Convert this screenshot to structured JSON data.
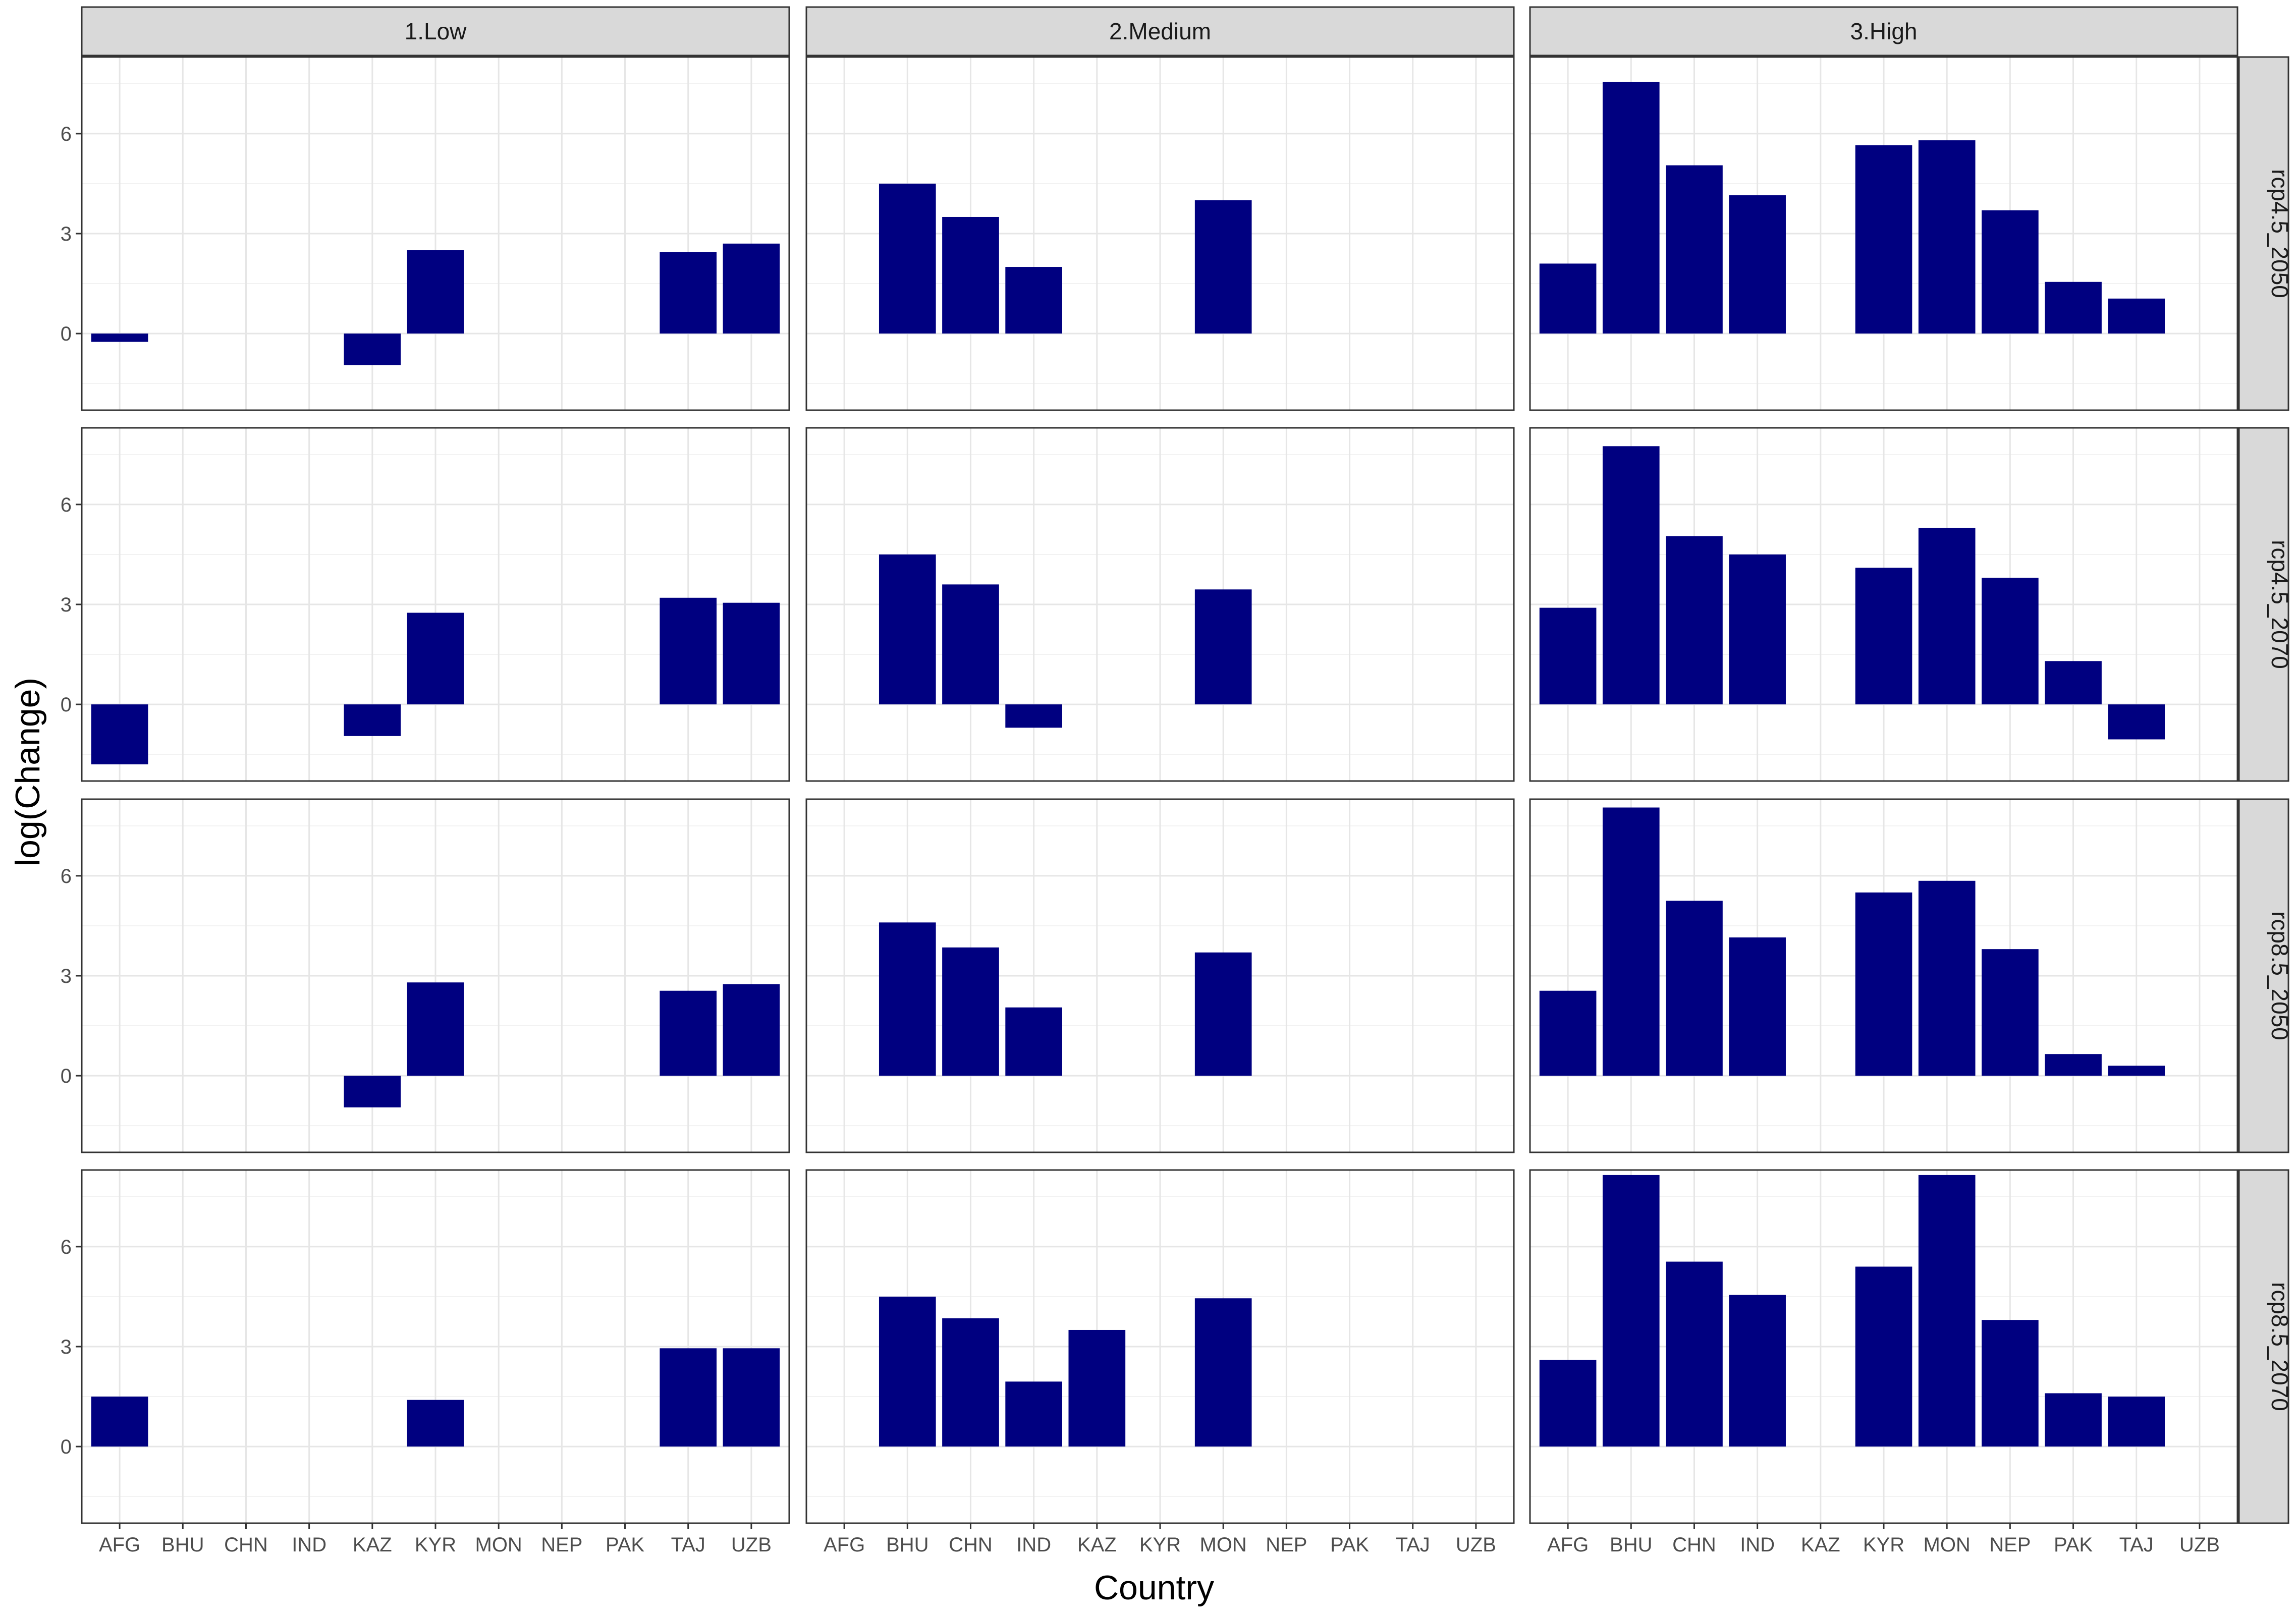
{
  "chart_data": {
    "type": "bar",
    "xlabel": "Country",
    "ylabel": "log(Change)",
    "categories": [
      "AFG",
      "BHU",
      "CHN",
      "IND",
      "KAZ",
      "KYR",
      "MON",
      "NEP",
      "PAK",
      "TAJ",
      "UZB"
    ],
    "columns": [
      "1.Low",
      "2.Medium",
      "3.High"
    ],
    "rows": [
      "rcp4.5_2050",
      "rcp4.5_2070",
      "rcp8.5_2050",
      "rcp8.5_2070"
    ],
    "yticks": [
      0,
      3,
      6
    ],
    "ylim": [
      -2.3,
      8.3
    ],
    "grid": true,
    "bar_color": "#000080",
    "panels": [
      {
        "row": "rcp4.5_2050",
        "column": "1.Low",
        "values": [
          -0.25,
          null,
          null,
          null,
          -0.95,
          2.5,
          null,
          null,
          null,
          2.45,
          2.7
        ]
      },
      {
        "row": "rcp4.5_2050",
        "column": "2.Medium",
        "values": [
          null,
          4.5,
          3.5,
          2.0,
          null,
          null,
          4.0,
          null,
          null,
          null,
          null
        ]
      },
      {
        "row": "rcp4.5_2050",
        "column": "3.High",
        "values": [
          2.1,
          7.55,
          5.05,
          4.15,
          null,
          5.65,
          5.8,
          3.7,
          1.55,
          1.05,
          null
        ]
      },
      {
        "row": "rcp4.5_2070",
        "column": "1.Low",
        "values": [
          -1.8,
          null,
          null,
          null,
          -0.95,
          2.75,
          null,
          null,
          null,
          3.2,
          3.05
        ]
      },
      {
        "row": "rcp4.5_2070",
        "column": "2.Medium",
        "values": [
          null,
          4.5,
          3.6,
          -0.7,
          null,
          null,
          3.45,
          null,
          null,
          null,
          null
        ]
      },
      {
        "row": "rcp4.5_2070",
        "column": "3.High",
        "values": [
          2.9,
          7.75,
          5.05,
          4.5,
          null,
          4.1,
          5.3,
          3.8,
          1.3,
          -1.05,
          null
        ]
      },
      {
        "row": "rcp8.5_2050",
        "column": "1.Low",
        "values": [
          null,
          null,
          null,
          null,
          -0.95,
          2.8,
          null,
          null,
          null,
          2.55,
          2.75
        ]
      },
      {
        "row": "rcp8.5_2050",
        "column": "2.Medium",
        "values": [
          null,
          4.6,
          3.85,
          2.05,
          null,
          null,
          3.7,
          null,
          null,
          null,
          null
        ]
      },
      {
        "row": "rcp8.5_2050",
        "column": "3.High",
        "values": [
          2.55,
          8.05,
          5.25,
          4.15,
          null,
          5.5,
          5.85,
          3.8,
          0.65,
          0.3,
          null
        ]
      },
      {
        "row": "rcp8.5_2070",
        "column": "1.Low",
        "values": [
          1.5,
          null,
          null,
          null,
          null,
          1.4,
          null,
          null,
          null,
          2.95,
          2.95
        ]
      },
      {
        "row": "rcp8.5_2070",
        "column": "2.Medium",
        "values": [
          null,
          4.5,
          3.85,
          1.95,
          3.5,
          null,
          4.45,
          null,
          null,
          null,
          null
        ]
      },
      {
        "row": "rcp8.5_2070",
        "column": "3.High",
        "values": [
          2.6,
          8.15,
          5.55,
          4.55,
          null,
          5.4,
          8.15,
          3.8,
          1.6,
          1.5,
          null
        ]
      }
    ]
  }
}
